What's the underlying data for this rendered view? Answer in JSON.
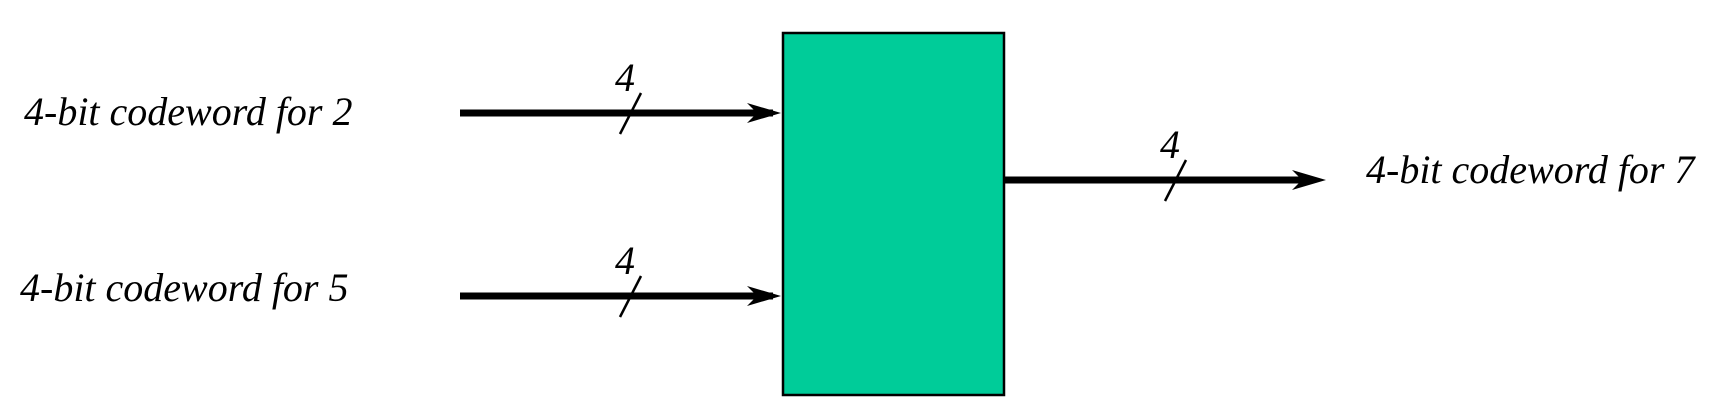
{
  "inputs": [
    {
      "label": "4-bit codeword for 2",
      "bus_width": "4"
    },
    {
      "label": "4-bit codeword for 5",
      "bus_width": "4"
    }
  ],
  "output": {
    "label": "4-bit codeword for 7",
    "bus_width": "4"
  },
  "colors": {
    "block_fill": "#00cc99",
    "block_stroke": "#000000",
    "wire": "#000000"
  }
}
